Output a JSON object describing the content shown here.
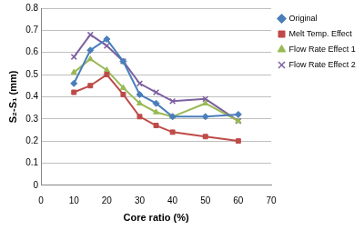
{
  "chart_data": {
    "type": "line",
    "x_label": "Core ratio (%)",
    "y_label": "S₂-S₁ (mm)",
    "x": [
      10,
      15,
      20,
      25,
      30,
      35,
      40,
      50,
      60
    ],
    "series": [
      {
        "name": "Original",
        "color": "#4a7ebb",
        "marker": "diamond",
        "values": [
          0.46,
          0.61,
          0.66,
          0.56,
          0.41,
          0.37,
          0.31,
          0.31,
          0.32
        ]
      },
      {
        "name": "Melt Temp. Effect",
        "color": "#be4b48",
        "marker": "square",
        "values": [
          0.42,
          0.45,
          0.5,
          0.41,
          0.31,
          0.27,
          0.24,
          0.22,
          0.2
        ]
      },
      {
        "name": "Flow Rate Effect 1",
        "color": "#98b954",
        "marker": "triangle",
        "values": [
          0.51,
          0.57,
          0.52,
          0.44,
          0.37,
          0.33,
          0.31,
          0.37,
          0.29
        ]
      },
      {
        "name": "Flow Rate Effect 2",
        "color": "#7d60a0",
        "marker": "x",
        "values": [
          0.58,
          0.68,
          0.63,
          0.56,
          0.46,
          0.42,
          0.38,
          0.39,
          0.29
        ]
      }
    ],
    "xlim": [
      0,
      70
    ],
    "xticks": [
      0,
      10,
      20,
      30,
      40,
      50,
      60,
      70
    ],
    "ylim": [
      0,
      0.8
    ],
    "yticks": [
      0,
      0.1,
      0.2,
      0.3,
      0.4,
      0.5,
      0.6,
      0.7,
      0.8
    ],
    "grid": "y",
    "legend": "right"
  }
}
